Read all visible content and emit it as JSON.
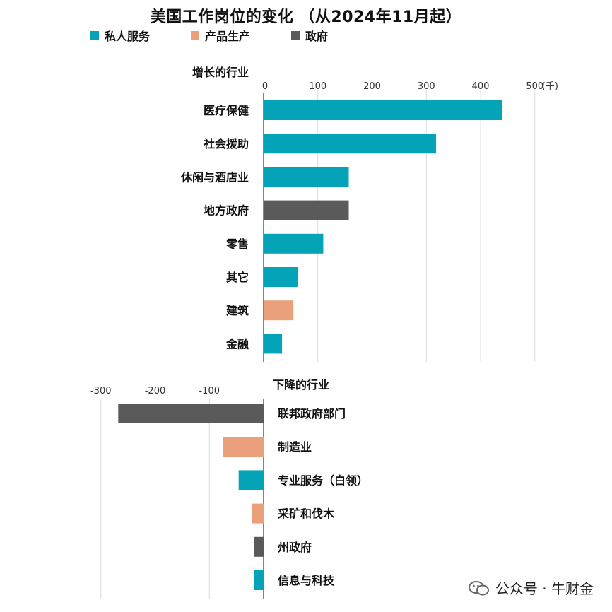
{
  "colors": {
    "private_services": "#05A3B8",
    "goods_producing": "#E9A07B",
    "government": "#5A5A5A",
    "grid": "#DCDCDC",
    "axis": "#333333"
  },
  "chart_data": {
    "type": "bar",
    "title": "美国工作岗位的变化 （从2024年11月起）",
    "legend": [
      {
        "name": "私人服务",
        "color_key": "private_services"
      },
      {
        "name": "产品生产",
        "color_key": "goods_producing"
      },
      {
        "name": "政府",
        "color_key": "government"
      }
    ],
    "legend_placement": "top-left",
    "growth": {
      "heading": "增长的行业",
      "unit": "(千)",
      "xlim": [
        0,
        500
      ],
      "ticks": [
        "0",
        "100",
        "200",
        "300",
        "400",
        "500"
      ],
      "categories": [
        "医疗保健",
        "社会援助",
        "休闲与酒店业",
        "地方政府",
        "零售",
        "其它",
        "建筑",
        "金融"
      ],
      "values": [
        440,
        318,
        157,
        157,
        110,
        63,
        55,
        34
      ],
      "groups": [
        "private_services",
        "private_services",
        "private_services",
        "government",
        "private_services",
        "private_services",
        "goods_producing",
        "private_services"
      ]
    },
    "decline": {
      "heading": "下降的行业",
      "xlim": [
        -300,
        0
      ],
      "ticks": [
        "-300",
        "-200",
        "-100"
      ],
      "categories": [
        "联邦政府部门",
        "制造业",
        "专业服务（白领）",
        "采矿和伐木",
        "州政府",
        "信息与科技"
      ],
      "values": [
        -268,
        -75,
        -46,
        -21,
        -17,
        -17
      ],
      "groups": [
        "government",
        "goods_producing",
        "private_services",
        "goods_producing",
        "government",
        "private_services"
      ]
    },
    "grid": true
  },
  "watermark": {
    "text": "公众号 · 牛财金",
    "icon": "wechat-icon"
  }
}
